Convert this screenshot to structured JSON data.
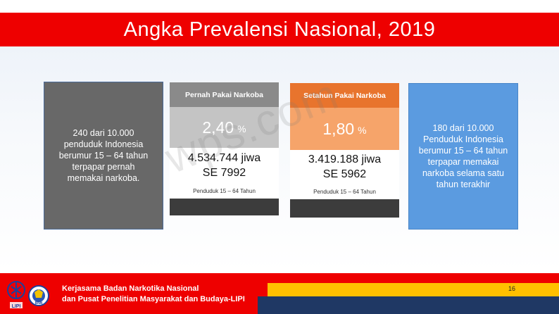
{
  "slide": {
    "title": "Angka Prevalensi Nasional, 2019"
  },
  "left_box": {
    "lines": [
      "240 dari 10.000",
      "penduduk Indonesia",
      "berumur 15 – 64 tahun",
      "terpapar pernah",
      "memakai narkoba."
    ]
  },
  "cards": [
    {
      "header": "Pernah Pakai Narkoba",
      "percent": "2,40",
      "unit": "%",
      "count": "4.534.744 jiwa",
      "se": "SE 7992",
      "population": "Penduduk 15 – 64 Tahun"
    },
    {
      "header": "Setahun Pakai Narkoba",
      "percent": "1,80",
      "unit": "%",
      "count": "3.419.188 jiwa",
      "se": "SE 5962",
      "population": "Penduduk 15 – 64 Tahun"
    }
  ],
  "right_box": {
    "lines": [
      "180 dari 10.000",
      "Penduduk Indonesia",
      "berumur 15 – 64 tahun",
      "terpapar memakai",
      "narkoba selama satu",
      "tahun terakhir"
    ]
  },
  "watermark": "wps.com",
  "footer": {
    "line1": "Kerjasama Badan Narkotika Nasional",
    "line2": "dan Pusat Penelitian Masyarakat dan Budaya-LIPI",
    "page_number": "16",
    "logo_lipi_text": "LIPI",
    "logo_bnn_text": "BNN"
  },
  "colors": {
    "title_red": "#ee0000",
    "grey_header": "#8a8a8a",
    "orange_header": "#e8742d",
    "blue_box": "#5b9be0",
    "footer_yellow": "#ffc000",
    "footer_navy": "#1f3864"
  }
}
